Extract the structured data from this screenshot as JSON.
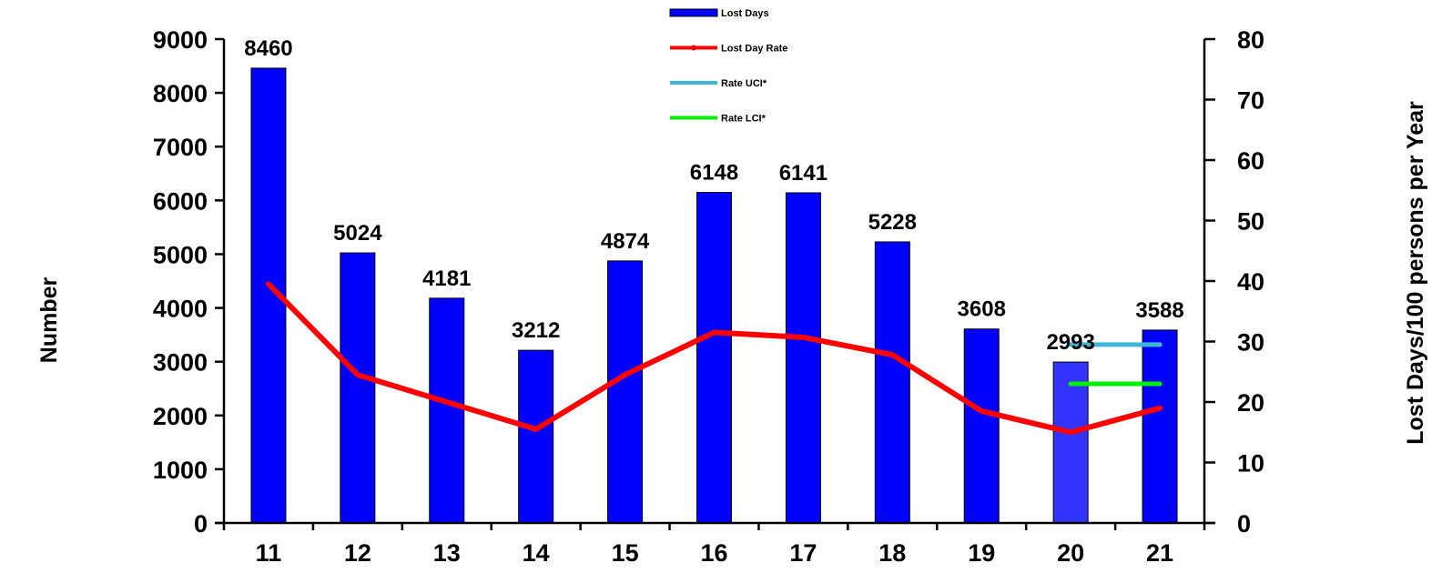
{
  "chart_data": {
    "type": "bar",
    "categories": [
      "11",
      "12",
      "13",
      "14",
      "15",
      "16",
      "17",
      "18",
      "19",
      "20",
      "21"
    ],
    "series": [
      {
        "name": "Lost Days",
        "type": "bar",
        "axis": "left",
        "color": "#0000ff",
        "values": [
          8460,
          5024,
          4181,
          3212,
          4874,
          6148,
          6141,
          5228,
          3608,
          2993,
          3588
        ],
        "highlight_index": 9,
        "highlight_color": "#3333ff"
      },
      {
        "name": "Lost Day Rate",
        "type": "line",
        "axis": "right",
        "color": "#ff0000",
        "values": [
          39.5,
          24.5,
          20.0,
          15.5,
          24.5,
          31.5,
          30.7,
          27.8,
          18.5,
          15.0,
          19.0
        ]
      },
      {
        "name": "Rate UCI*",
        "type": "line",
        "axis": "right",
        "color": "#3fb6d6",
        "x": [
          "20",
          "21"
        ],
        "values": [
          29.5,
          29.5
        ]
      },
      {
        "name": "Rate LCI*",
        "type": "line",
        "axis": "right",
        "color": "#00ee00",
        "x": [
          "20",
          "21"
        ],
        "values": [
          23.0,
          23.0
        ]
      }
    ],
    "data_labels": [
      "8460",
      "5024",
      "4181",
      "3212",
      "4874",
      "6148",
      "6141",
      "5228",
      "3608",
      "2993",
      "3588"
    ],
    "xlabel": "",
    "ylabel": "Number",
    "ylabel_right": "Lost Days/100 persons per Year",
    "ylim": [
      0,
      9000
    ],
    "ylim_right": [
      0,
      80
    ],
    "yticks": [
      "0",
      "1000",
      "2000",
      "3000",
      "4000",
      "5000",
      "6000",
      "7000",
      "8000",
      "9000"
    ],
    "yticks_right": [
      "0",
      "10",
      "20",
      "30",
      "40",
      "50",
      "60",
      "70",
      "80"
    ],
    "legend": [
      "Lost Days",
      "Lost Day Rate",
      "Rate UCI*",
      "Rate LCI*"
    ],
    "legend_position": "top-center",
    "grid": false
  }
}
